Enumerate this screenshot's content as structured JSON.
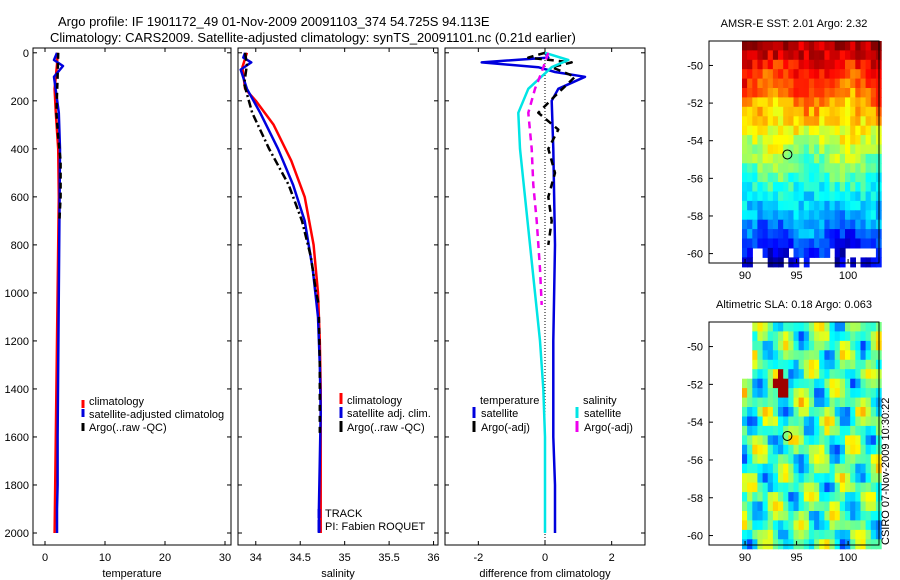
{
  "header": {
    "line1": "Argo profile: IF 1901172_49 01-Nov-2009 20091103_374 54.725S 94.113E",
    "line2": "Climatology: CARS2009. Satellite-adjusted climatology: synTS_20091101.nc (0.21d earlier)"
  },
  "colors": {
    "climatology": "#ff0000",
    "satellite": "#0000dd",
    "argo": "#000000",
    "satellite_salinity": "#00e5e5",
    "argo_salinity": "#ee00ee"
  },
  "footer": {
    "credit": "CSIRO 07-Nov-2009 10:30:22"
  },
  "chart_data": [
    {
      "id": "temperature",
      "type": "line",
      "xlabel": "temperature",
      "xlim": [
        -2,
        31
      ],
      "ylim": [
        2050,
        -20
      ],
      "xticks": [
        0,
        10,
        20,
        30
      ],
      "yticks": [
        0,
        200,
        400,
        600,
        800,
        1000,
        1200,
        1400,
        1600,
        1800,
        2000
      ],
      "series": [
        {
          "name": "climatology",
          "color": "#ff0000",
          "dash": "",
          "x": [
            2.1,
            2.0,
            1.6,
            1.8,
            2.2,
            2.3,
            2.2,
            2.1,
            2.0,
            1.9,
            1.8,
            1.7,
            1.6
          ],
          "y": [
            0,
            50,
            150,
            250,
            400,
            600,
            800,
            1000,
            1200,
            1400,
            1600,
            1800,
            2000
          ]
        },
        {
          "name": "satellite-adjusted climatology",
          "color": "#0000dd",
          "dash": "",
          "x": [
            2.0,
            1.5,
            3.0,
            1.5,
            2.3,
            2.5,
            2.4,
            2.3,
            2.2,
            2.1,
            2.1,
            2.0,
            2.0
          ],
          "y": [
            0,
            30,
            55,
            100,
            250,
            400,
            700,
            1000,
            1300,
            1600,
            1800,
            1900,
            2000
          ]
        },
        {
          "name": "Argo(..raw -QC)",
          "color": "#000000",
          "dash": "6,4",
          "x": [
            2.2,
            2.1,
            1.9,
            2.2,
            2.6,
            2.6,
            2.4
          ],
          "y": [
            0,
            100,
            250,
            350,
            450,
            600,
            700
          ]
        }
      ],
      "legend": [
        "climatology",
        "satellite-adjusted climatolog",
        "Argo(..raw -QC)"
      ]
    },
    {
      "id": "salinity",
      "type": "line",
      "xlabel": "salinity",
      "xlim": [
        33.8,
        36.05
      ],
      "ylim": [
        2050,
        -20
      ],
      "xticks": [
        34,
        34.5,
        35,
        35.5,
        36
      ],
      "yticks": [
        0,
        200,
        400,
        600,
        800,
        1000,
        1200,
        1400,
        1600,
        1800,
        2000
      ],
      "series": [
        {
          "name": "climatology",
          "color": "#ff0000",
          "dash": "",
          "x": [
            33.9,
            33.85,
            33.88,
            34.0,
            34.2,
            34.4,
            34.55,
            34.65,
            34.7,
            34.72,
            34.73,
            34.73,
            34.73,
            34.73
          ],
          "y": [
            0,
            60,
            150,
            200,
            300,
            450,
            600,
            800,
            1000,
            1200,
            1400,
            1600,
            1800,
            2000
          ]
        },
        {
          "name": "satellite adj. clim.",
          "color": "#0000dd",
          "dash": "",
          "x": [
            33.88,
            33.86,
            33.95,
            33.83,
            33.9,
            34.05,
            34.25,
            34.42,
            34.55,
            34.64,
            34.7,
            34.72,
            34.73,
            34.72,
            34.71,
            34.71
          ],
          "y": [
            0,
            20,
            40,
            70,
            150,
            250,
            400,
            550,
            700,
            900,
            1100,
            1300,
            1500,
            1700,
            1900,
            2000
          ]
        },
        {
          "name": "Argo(..raw -QC)",
          "color": "#000000",
          "dash": "8,3,2,3",
          "x": [
            33.88,
            33.9,
            33.87,
            33.96,
            34.15,
            34.37,
            34.52,
            34.62,
            34.68,
            34.71
          ],
          "y": [
            0,
            50,
            130,
            250,
            400,
            550,
            700,
            850,
            1000,
            1050
          ]
        },
        {
          "name": "Argo(..raw -QC)",
          "color": "#000000",
          "dash": "6,5",
          "x": [
            34.71,
            34.72,
            34.72,
            34.72
          ],
          "y": [
            1100,
            1300,
            1500,
            1600
          ]
        }
      ],
      "legend": [
        "climatology",
        "satellite adj. clim.",
        "Argo(..raw -QC)"
      ],
      "annotations": [
        "TRACK",
        "PI: Fabien ROQUET"
      ]
    },
    {
      "id": "difference",
      "type": "line",
      "xlabel": "difference from climatology",
      "xlim": [
        -3,
        3
      ],
      "ylim": [
        2050,
        -20
      ],
      "xticks": [
        -2,
        0,
        2
      ],
      "yticks": [
        0,
        200,
        400,
        600,
        800,
        1000,
        1200,
        1400,
        1600,
        1800,
        2000
      ],
      "series": [
        {
          "name": "temperature satellite",
          "color": "#0000dd",
          "dash": "",
          "x": [
            0,
            0.1,
            -1.9,
            -0.2,
            0.3,
            1.2,
            0.4,
            0.2,
            0.25,
            0.3,
            0.25,
            0.25,
            0.3,
            0.3
          ],
          "y": [
            0,
            20,
            40,
            60,
            80,
            100,
            150,
            200,
            400,
            800,
            1200,
            1600,
            1800,
            2000
          ]
        },
        {
          "name": "temperature Argo(-adj)",
          "color": "#000000",
          "dash": "7,5",
          "x": [
            0,
            -0.5,
            0.8,
            0.2,
            0.9,
            0.3,
            -0.2,
            0.4,
            0.1,
            0.3,
            0.1,
            0.2,
            0.1
          ],
          "y": [
            0,
            20,
            40,
            60,
            100,
            180,
            250,
            320,
            400,
            500,
            600,
            700,
            800
          ]
        },
        {
          "name": "salinity satellite",
          "color": "#00e5e5",
          "dash": "",
          "x": [
            0,
            0.7,
            0.2,
            -0.5,
            -0.8,
            -0.75,
            -0.6,
            -0.45,
            -0.3,
            -0.15,
            -0.05,
            0,
            0,
            0
          ],
          "y": [
            0,
            30,
            60,
            150,
            250,
            400,
            600,
            800,
            1000,
            1200,
            1400,
            1600,
            1800,
            2000
          ]
        },
        {
          "name": "salinity Argo(-adj)",
          "color": "#ee00ee",
          "dash": "7,5",
          "x": [
            0.1,
            -0.1,
            -0.3,
            -0.5,
            -0.4,
            -0.35,
            -0.25,
            -0.15,
            -0.1
          ],
          "y": [
            0,
            80,
            150,
            250,
            400,
            550,
            700,
            900,
            1050
          ]
        }
      ],
      "legend_headers": [
        "temperature",
        "salinity"
      ],
      "legend": [
        "satellite",
        "Argo(-adj)",
        "satellite",
        "Argo(-adj)"
      ]
    },
    {
      "id": "sst_map",
      "type": "heatmap",
      "title": "AMSR-E SST: 2.01 Argo: 2.32",
      "xlim": [
        86.5,
        103
      ],
      "ylim": [
        -60.5,
        -48.7
      ],
      "xticks": [
        90,
        95,
        100
      ],
      "yticks": [
        -50,
        -52,
        -54,
        -56,
        -58,
        -60
      ],
      "marker": [
        94.11,
        -54.73
      ]
    },
    {
      "id": "sla_map",
      "type": "heatmap",
      "title": "Altimetric SLA: 0.18 Argo: 0.063",
      "xlim": [
        86.5,
        103
      ],
      "ylim": [
        -60.5,
        -48.7
      ],
      "xticks": [
        90,
        95,
        100
      ],
      "yticks": [
        -50,
        -52,
        -54,
        -56,
        -58,
        -60
      ],
      "marker": [
        94.11,
        -54.73
      ]
    }
  ]
}
